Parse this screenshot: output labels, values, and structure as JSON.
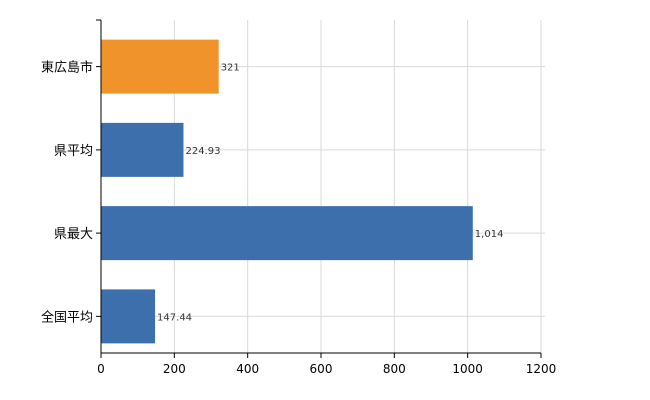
{
  "chart_data": {
    "type": "bar",
    "orientation": "horizontal",
    "categories": [
      "東広島市",
      "県平均",
      "県最大",
      "全国平均"
    ],
    "values": [
      321,
      224.93,
      1014,
      147.44
    ],
    "data_labels": [
      "321",
      "224.93",
      "1,014",
      "147.44"
    ],
    "x_ticks": [
      "0",
      "200",
      "400",
      "600",
      "800",
      "1000",
      "1200"
    ],
    "xlim": [
      0,
      1200
    ],
    "grid": true,
    "legend": "none",
    "colors": [
      "#f0932b",
      "#3e6fad",
      "#3e6fad",
      "#3e6fad"
    ],
    "grid_color": "#d9d9d9",
    "axis_color": "#000000"
  }
}
